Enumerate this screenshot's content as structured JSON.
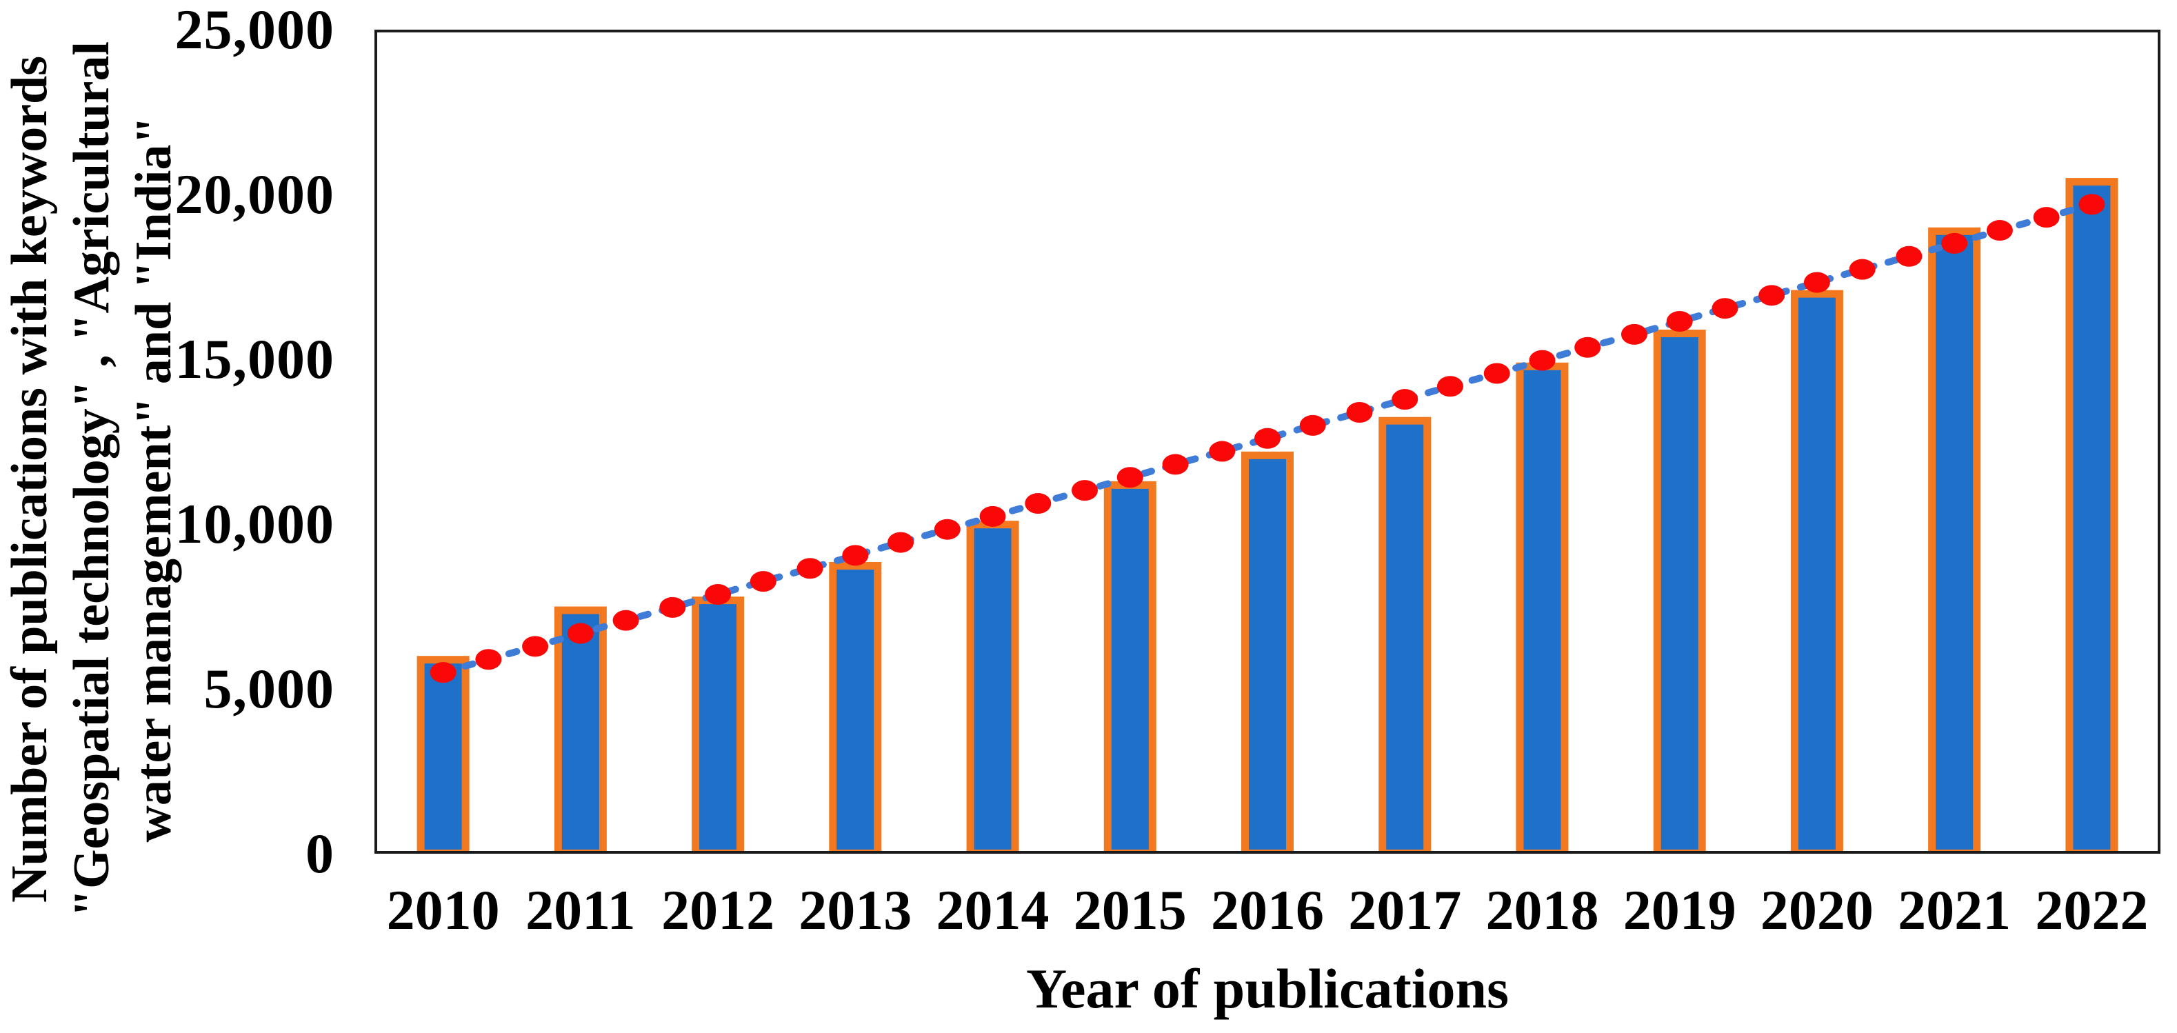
{
  "figure": {
    "y_axis": {
      "title_lines": [
        "Number of publications with keywords",
        "\"Geospatial technology\" , \"Agricultural",
        "water management\" and \"India\""
      ],
      "tick_labels": [
        "25,000",
        "20,000",
        "15,000",
        "10,000",
        "5,000",
        "0"
      ],
      "tick_values": [
        25000,
        20000,
        15000,
        10000,
        5000,
        0
      ]
    },
    "x_axis": {
      "title": "Year of publications",
      "categories": [
        "2010",
        "2011",
        "2012",
        "2013",
        "2014",
        "2015",
        "2016",
        "2017",
        "2018",
        "2019",
        "2020",
        "2021",
        "2022"
      ]
    },
    "colors": {
      "bar_fill": "#1E70C8",
      "bar_border": "#F2791F",
      "trend_dot": "#FA0707",
      "trend_dash": "#3E7CD8",
      "axis": "#1A1A1A",
      "text": "#000000"
    }
  },
  "chart_data": {
    "type": "bar",
    "title": "",
    "xlabel": "Year of publications",
    "ylabel": "Number of publications with keywords \"Geospatial technology\" , \"Agricultural water management\" and \"India\"",
    "ylim": [
      0,
      25000
    ],
    "yticks": [
      0,
      5000,
      10000,
      15000,
      20000,
      25000
    ],
    "grid": false,
    "legend": "none",
    "categories": [
      "2010",
      "2011",
      "2012",
      "2013",
      "2014",
      "2015",
      "2016",
      "2017",
      "2018",
      "2019",
      "2020",
      "2021",
      "2022"
    ],
    "series": [
      {
        "name": "publications-per-year",
        "type": "bar",
        "values": [
          6000,
          7500,
          7800,
          8850,
          10100,
          11300,
          12200,
          13250,
          14900,
          15900,
          17100,
          19000,
          20500
        ]
      },
      {
        "name": "trend-dotted-line-with-markers",
        "type": "line",
        "x": [
          2010,
          2010.33,
          2010.67,
          2011,
          2011.33,
          2011.67,
          2012,
          2012.33,
          2012.67,
          2013,
          2013.33,
          2013.67,
          2014,
          2014.33,
          2014.67,
          2015,
          2015.33,
          2015.67,
          2016,
          2016.33,
          2016.67,
          2017,
          2017.33,
          2017.67,
          2018,
          2018.33,
          2018.67,
          2019,
          2019.33,
          2019.67,
          2020,
          2020.33,
          2020.67,
          2021,
          2021.33,
          2021.67,
          2022
        ],
        "values": [
          5500,
          5894,
          6289,
          6683,
          7078,
          7472,
          7867,
          8261,
          8656,
          9050,
          9444,
          9839,
          10233,
          10628,
          11022,
          11417,
          11811,
          12206,
          12600,
          12994,
          13389,
          13783,
          14178,
          14572,
          14967,
          15361,
          15756,
          16150,
          16544,
          16939,
          17333,
          17728,
          18122,
          18517,
          18911,
          19306,
          19700
        ]
      }
    ]
  }
}
